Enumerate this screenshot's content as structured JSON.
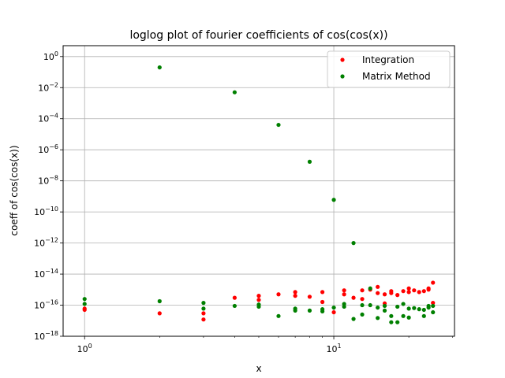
{
  "chart_data": {
    "type": "scatter",
    "title": "loglog plot of fourier coefficients of cos(cos(x))",
    "xlabel": "x",
    "ylabel": "coeff of cos(cos(x))",
    "xscale": "log",
    "yscale": "log",
    "xlim": [
      0.82,
      30.5
    ],
    "ylim": [
      1e-18,
      5
    ],
    "grid": true,
    "legend_position": "top-right",
    "x_ticks": [
      {
        "value": 1,
        "base": "10",
        "exp": "0"
      },
      {
        "value": 10,
        "base": "10",
        "exp": "1"
      }
    ],
    "y_ticks": [
      {
        "value": 1.0,
        "base": "10",
        "exp": "0"
      },
      {
        "value": 0.01,
        "base": "10",
        "exp": "−2"
      },
      {
        "value": 0.0001,
        "base": "10",
        "exp": "−4"
      },
      {
        "value": 1e-06,
        "base": "10",
        "exp": "−6"
      },
      {
        "value": 1e-08,
        "base": "10",
        "exp": "−8"
      },
      {
        "value": 1e-10,
        "base": "10",
        "exp": "−10"
      },
      {
        "value": 1e-12,
        "base": "10",
        "exp": "−12"
      },
      {
        "value": 1e-14,
        "base": "10",
        "exp": "−14"
      },
      {
        "value": 1e-16,
        "base": "10",
        "exp": "−16"
      },
      {
        "value": 1e-18,
        "base": "10",
        "exp": "−18"
      }
    ],
    "series": [
      {
        "name": "Integration",
        "color": "#ff0000",
        "points": [
          [
            1,
            6e-17
          ],
          [
            1,
            5e-17
          ],
          [
            2,
            3e-17
          ],
          [
            3,
            3e-17
          ],
          [
            3,
            1.2e-17
          ],
          [
            4,
            3e-16
          ],
          [
            5,
            4e-16
          ],
          [
            5,
            2.2e-16
          ],
          [
            6,
            5e-16
          ],
          [
            7,
            7e-16
          ],
          [
            7,
            4e-16
          ],
          [
            8,
            3.5e-16
          ],
          [
            9,
            7e-16
          ],
          [
            9,
            1.6e-16
          ],
          [
            10,
            3.5e-17
          ],
          [
            11,
            9e-16
          ],
          [
            11,
            5e-16
          ],
          [
            12,
            3e-16
          ],
          [
            13,
            9e-16
          ],
          [
            13,
            2.5e-16
          ],
          [
            14,
            1e-15
          ],
          [
            15,
            1.5e-15
          ],
          [
            15,
            6e-16
          ],
          [
            16,
            1.3e-16
          ],
          [
            16,
            5e-16
          ],
          [
            17,
            8e-16
          ],
          [
            17,
            6e-16
          ],
          [
            18,
            4.5e-16
          ],
          [
            19,
            8e-16
          ],
          [
            20,
            1.2e-15
          ],
          [
            20,
            7e-16
          ],
          [
            21,
            9e-16
          ],
          [
            22,
            7e-16
          ],
          [
            23,
            8e-16
          ],
          [
            24,
            1.2e-15
          ],
          [
            24,
            1e-15
          ],
          [
            25,
            2.8e-15
          ],
          [
            25,
            1.4e-16
          ]
        ]
      },
      {
        "name": "Matrix  Method",
        "color": "#008000",
        "points": [
          [
            1,
            2.5e-16
          ],
          [
            1,
            1.2e-16
          ],
          [
            2,
            0.2
          ],
          [
            2,
            1.8e-16
          ],
          [
            3,
            1.4e-16
          ],
          [
            3,
            6e-17
          ],
          [
            4,
            0.005
          ],
          [
            4,
            9e-17
          ],
          [
            5,
            1.1e-16
          ],
          [
            5,
            8e-17
          ],
          [
            6,
            4e-05
          ],
          [
            6,
            2e-17
          ],
          [
            7,
            6e-17
          ],
          [
            7,
            4.5e-17
          ],
          [
            8,
            1.7e-07
          ],
          [
            8,
            4.5e-17
          ],
          [
            9,
            5.5e-17
          ],
          [
            9,
            4e-17
          ],
          [
            10,
            6e-10
          ],
          [
            10,
            7e-17
          ],
          [
            11,
            1.2e-16
          ],
          [
            11,
            8e-17
          ],
          [
            12,
            1e-12
          ],
          [
            12,
            1.3e-17
          ],
          [
            13,
            1e-16
          ],
          [
            13,
            2.5e-17
          ],
          [
            14,
            1.2e-15
          ],
          [
            14,
            1e-16
          ],
          [
            15,
            7e-17
          ],
          [
            15,
            1.5e-17
          ],
          [
            16,
            9e-17
          ],
          [
            16,
            4.5e-17
          ],
          [
            17,
            2e-17
          ],
          [
            17,
            8e-18
          ],
          [
            18,
            8e-17
          ],
          [
            18,
            8e-18
          ],
          [
            19,
            1.2e-16
          ],
          [
            19,
            2e-17
          ],
          [
            20,
            6e-17
          ],
          [
            20,
            1.6e-17
          ],
          [
            21,
            6.5e-17
          ],
          [
            22,
            5.5e-17
          ],
          [
            23,
            5e-17
          ],
          [
            23,
            2e-17
          ],
          [
            24,
            9e-17
          ],
          [
            24,
            7e-17
          ],
          [
            25,
            9e-17
          ],
          [
            25,
            3.5e-17
          ]
        ]
      }
    ]
  }
}
